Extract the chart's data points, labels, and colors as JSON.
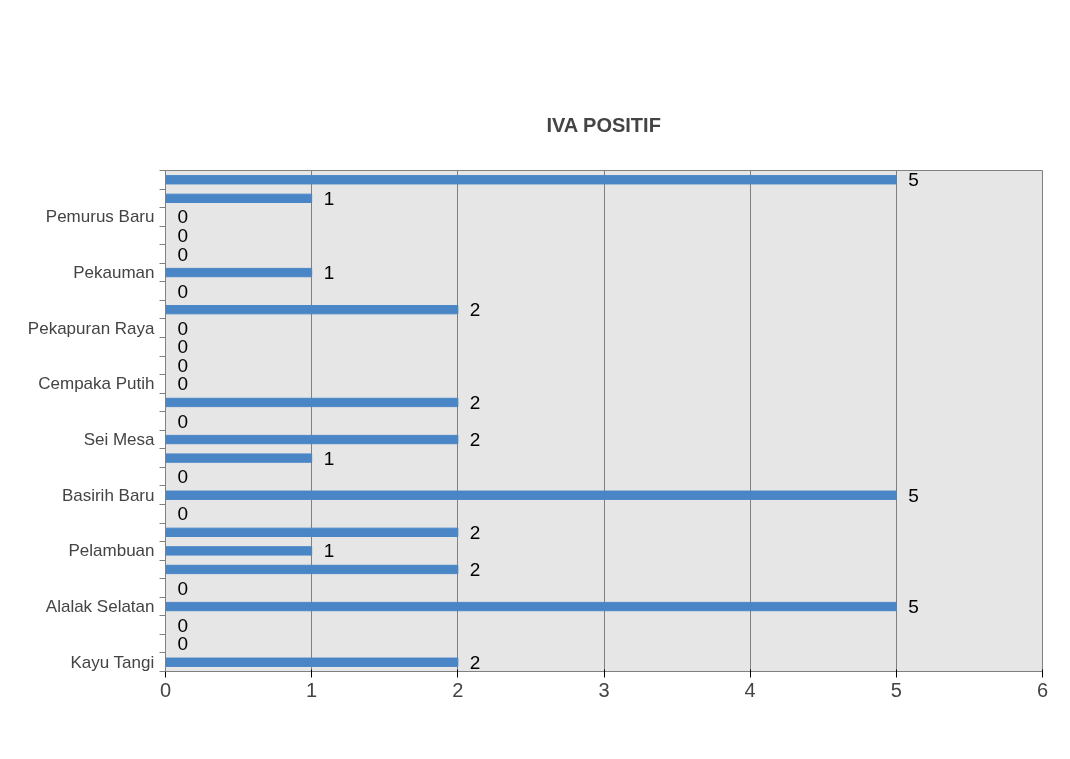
{
  "chart_data": {
    "type": "bar",
    "orientation": "horizontal",
    "title": "IVA POSITIF",
    "categories": [
      null,
      null,
      "Pemurus Baru",
      null,
      null,
      "Pekauman",
      null,
      null,
      "Pekapuran Raya",
      null,
      null,
      "Cempaka Putih",
      null,
      null,
      "Sei Mesa",
      null,
      null,
      "Basirih Baru",
      null,
      null,
      "Pelambuan",
      null,
      null,
      "Alalak Selatan",
      null,
      null,
      "Kayu Tangi"
    ],
    "values": [
      5,
      1,
      0,
      0,
      0,
      1,
      0,
      2,
      0,
      0,
      0,
      0,
      2,
      0,
      2,
      1,
      0,
      5,
      0,
      2,
      1,
      2,
      0,
      5,
      0,
      0,
      2
    ],
    "color": "#4a86c5",
    "xlim": [
      0,
      6
    ],
    "xticks": [
      0,
      1,
      2,
      3,
      4,
      5,
      6
    ],
    "grid": "x",
    "data_labels": true
  }
}
